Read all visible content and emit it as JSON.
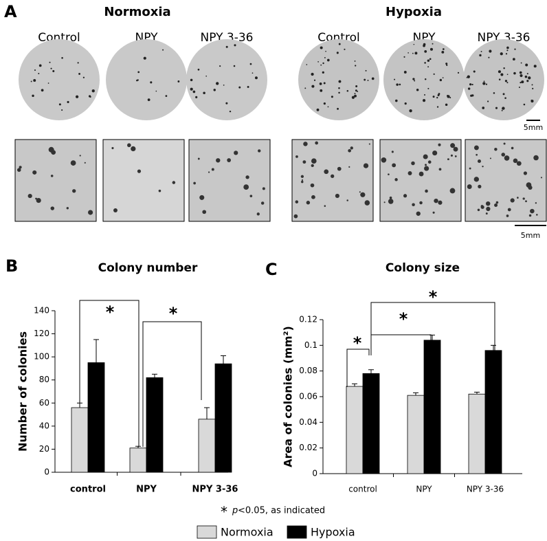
{
  "panel_a": {
    "label": "A",
    "groups": [
      {
        "title": "Normoxia",
        "conditions": [
          "Control",
          "NPY",
          "NPY 3-36"
        ]
      },
      {
        "title": "Hypoxia",
        "conditions": [
          "Control",
          "NPY",
          "NPY 3-36"
        ]
      }
    ],
    "scale_bars": [
      "5mm",
      "5mm"
    ]
  },
  "chart_data": [
    {
      "type": "bar",
      "panel": "B",
      "title": "Colony number",
      "ylabel": "Number of colonies",
      "categories": [
        "control",
        "NPY",
        "NPY 3-36"
      ],
      "series": [
        {
          "name": "Normoxia",
          "color": "#d9d9d9",
          "values": [
            56,
            21,
            46
          ],
          "errors": [
            4,
            1.5,
            10
          ]
        },
        {
          "name": "Hypoxia",
          "color": "#000000",
          "values": [
            95,
            82,
            94
          ],
          "errors": [
            20,
            3,
            7
          ]
        }
      ],
      "ylim": [
        0,
        140
      ],
      "yticks": [
        0,
        20,
        40,
        60,
        80,
        100,
        120,
        140
      ],
      "annotations": [
        "*",
        "*"
      ]
    },
    {
      "type": "bar",
      "panel": "C",
      "title": "Colony size",
      "ylabel": "Area of colonies (mm²)",
      "categories": [
        "control",
        "NPY",
        "NPY 3-36"
      ],
      "series": [
        {
          "name": "Normoxia",
          "color": "#d9d9d9",
          "values": [
            0.068,
            0.061,
            0.062
          ],
          "errors": [
            0.002,
            0.002,
            0.0015
          ]
        },
        {
          "name": "Hypoxia",
          "color": "#000000",
          "values": [
            0.078,
            0.104,
            0.096
          ],
          "errors": [
            0.003,
            0.004,
            0.004
          ]
        }
      ],
      "ylim": [
        0,
        0.12
      ],
      "yticks": [
        0,
        0.02,
        0.04,
        0.06,
        0.08,
        0.1,
        0.12
      ],
      "annotations": [
        "*",
        "*",
        "*"
      ]
    }
  ],
  "footnote": {
    "symbol": "*",
    "italic": "p",
    "text": "<0.05, as indicated"
  }
}
